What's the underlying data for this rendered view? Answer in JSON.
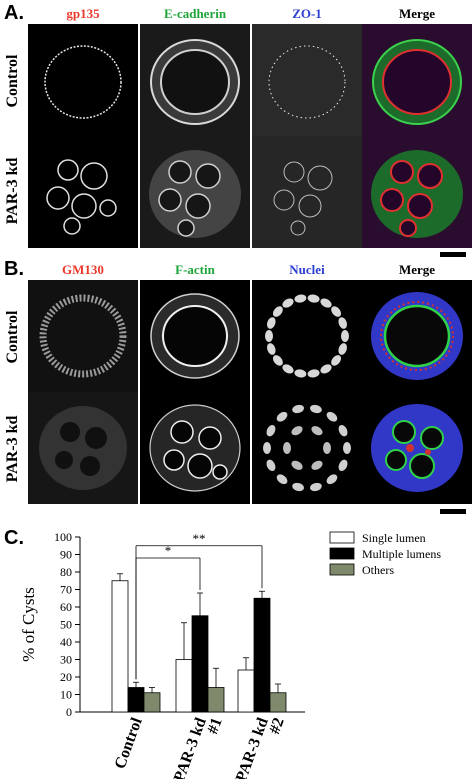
{
  "panelA": {
    "letter": "A.",
    "columns": [
      {
        "label": "gp135",
        "color": "#e8392b"
      },
      {
        "label": "E-cadherin",
        "color": "#1fa63a"
      },
      {
        "label": "ZO-1",
        "color": "#2b3fd1"
      },
      {
        "label": "Merge",
        "color": "#000000"
      }
    ],
    "rows": [
      "Control",
      "PAR-3 kd"
    ]
  },
  "panelB": {
    "letter": "B.",
    "columns": [
      {
        "label": "GM130",
        "color": "#e8392b"
      },
      {
        "label": "F-actin",
        "color": "#1fa63a"
      },
      {
        "label": "Nuclei",
        "color": "#2b3fd1"
      },
      {
        "label": "Merge",
        "color": "#000000"
      }
    ],
    "rows": [
      "Control",
      "PAR-3 kd"
    ]
  },
  "panelC": {
    "letter": "C."
  },
  "chart_data": {
    "type": "bar",
    "ylabel": "% of Cysts",
    "ylim": [
      0,
      100
    ],
    "yticks": [
      0,
      10,
      20,
      30,
      40,
      50,
      60,
      70,
      80,
      90,
      100
    ],
    "categories": [
      "Control",
      "PAR-3 kd #1",
      "PAR-3 kd #2"
    ],
    "category_lines": [
      [
        "Control"
      ],
      [
        "PAR-3 kd",
        "#1"
      ],
      [
        "PAR-3 kd",
        "#2"
      ]
    ],
    "series": [
      {
        "name": "Single lumen",
        "color": "#ffffff",
        "values": [
          75,
          30,
          24
        ],
        "errors": [
          4,
          21,
          7
        ]
      },
      {
        "name": "Multiple lumens",
        "color": "#000000",
        "values": [
          14,
          55,
          65
        ],
        "errors": [
          3,
          13,
          4
        ]
      },
      {
        "name": "Others",
        "color": "#7f8a6c",
        "values": [
          11,
          14,
          11
        ],
        "errors": [
          3,
          11,
          5
        ]
      }
    ],
    "significance": [
      {
        "label": "*",
        "from": 0,
        "to": 1
      },
      {
        "label": "**",
        "from": 0,
        "to": 2
      }
    ],
    "legend_position": "top-right",
    "grid": false
  }
}
